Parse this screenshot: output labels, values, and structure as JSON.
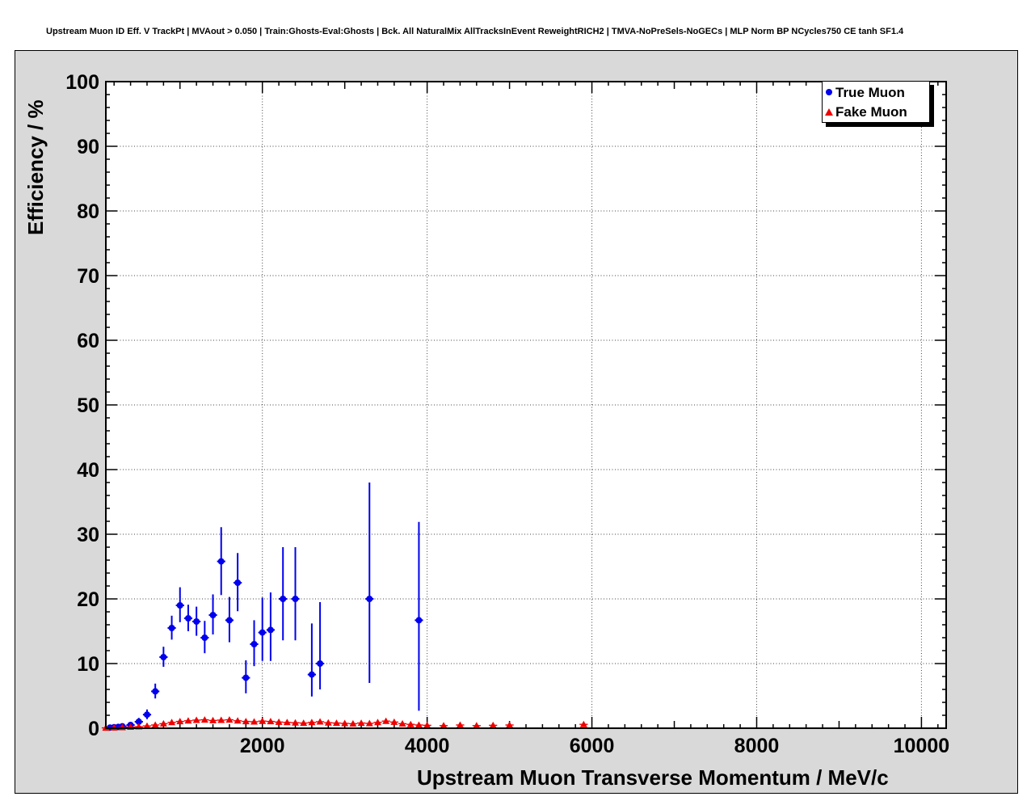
{
  "page": {
    "title": "Upstream Muon ID Eff. V TrackPt | MVAout > 0.050 | Train:Ghosts-Eval:Ghosts | Bck. All NaturalMix AllTracksInEvent ReweightRICH2 | TMVA-NoPreSels-NoGECs | MLP Norm BP NCycles750 CE tanh SF1.4"
  },
  "colors": {
    "pad_background": "#d9d9d9",
    "plot_background": "#ffffff",
    "true_muon": "#0000ee",
    "fake_muon": "#ee0000",
    "grid": "#444444",
    "frame": "#000000"
  },
  "legend": {
    "entries": [
      {
        "label": "True Muon",
        "marker": "circle",
        "color": "#0000ee"
      },
      {
        "label": "Fake Muon",
        "marker": "triangle",
        "color": "#ee0000"
      }
    ]
  },
  "chart_data": {
    "type": "scatter",
    "title": "Upstream Muon ID Eff. V TrackPt | MVAout > 0.050 | Train:Ghosts-Eval:Ghosts | Bck. All NaturalMix AllTracksInEvent ReweightRICH2 | TMVA-NoPreSels-NoGECs | MLP Norm BP NCycles750 CE tanh SF1.4",
    "xlabel": "Upstream Muon Transverse Momentum / MeV/c",
    "ylabel": "Efficiency / %",
    "xlim": [
      100,
      10300
    ],
    "ylim": [
      0,
      100
    ],
    "x_ticks": [
      2000,
      4000,
      6000,
      8000,
      10000
    ],
    "y_ticks": [
      0,
      10,
      20,
      30,
      40,
      50,
      60,
      70,
      80,
      90,
      100
    ],
    "x_minor_step": 200,
    "y_minor_step": 2,
    "grid": true,
    "legend_position": "top-right",
    "series": [
      {
        "name": "True Muon",
        "color": "#0000ee",
        "marker": "circle",
        "ex": 50,
        "x": [
          150,
          200,
          250,
          300,
          400,
          500,
          600,
          700,
          800,
          900,
          1000,
          1100,
          1200,
          1300,
          1400,
          1500,
          1600,
          1700,
          1800,
          1900,
          2000,
          2100,
          2250,
          2400,
          2600,
          2700,
          3300,
          3900
        ],
        "y": [
          0.1,
          0.15,
          0.2,
          0.3,
          0.5,
          1.0,
          2.1,
          5.7,
          11.0,
          15.5,
          19.0,
          17.0,
          16.5,
          14.0,
          17.5,
          25.8,
          16.7,
          22.5,
          7.8,
          13.0,
          14.8,
          15.2,
          20.0,
          20.0,
          8.3,
          10.0,
          20.0,
          16.7
        ],
        "ey_low": [
          0.08,
          0.1,
          0.12,
          0.2,
          0.3,
          0.4,
          0.7,
          1.1,
          1.5,
          1.8,
          2.6,
          2.0,
          2.2,
          2.4,
          3.0,
          5.2,
          3.4,
          4.4,
          2.4,
          3.4,
          4.4,
          4.8,
          6.4,
          6.4,
          3.4,
          4.0,
          13.0,
          14.0
        ],
        "ey_high": [
          0.12,
          0.15,
          0.18,
          0.3,
          0.4,
          0.6,
          0.8,
          1.2,
          1.6,
          1.9,
          2.8,
          2.1,
          2.3,
          2.6,
          3.2,
          5.3,
          3.6,
          4.6,
          2.7,
          3.7,
          5.4,
          5.8,
          8.0,
          8.0,
          7.9,
          9.5,
          18.0,
          15.2
        ]
      },
      {
        "name": "Fake Muon",
        "color": "#ee0000",
        "marker": "triangle",
        "ex": 50,
        "x": [
          100,
          200,
          300,
          400,
          500,
          600,
          700,
          800,
          900,
          1000,
          1100,
          1200,
          1300,
          1400,
          1500,
          1600,
          1700,
          1800,
          1900,
          2000,
          2100,
          2200,
          2300,
          2400,
          2500,
          2600,
          2700,
          2800,
          2900,
          3000,
          3100,
          3200,
          3300,
          3400,
          3500,
          3600,
          3700,
          3800,
          3900,
          4000,
          4200,
          4400,
          4600,
          4800,
          5000,
          5900
        ],
        "y": [
          0.05,
          0.08,
          0.12,
          0.18,
          0.25,
          0.35,
          0.5,
          0.7,
          0.9,
          1.05,
          1.15,
          1.25,
          1.3,
          1.2,
          1.25,
          1.3,
          1.15,
          1.05,
          1.0,
          1.1,
          1.05,
          0.95,
          0.9,
          0.85,
          0.8,
          0.9,
          1.0,
          0.85,
          0.8,
          0.75,
          0.7,
          0.8,
          0.75,
          0.9,
          1.1,
          0.95,
          0.7,
          0.6,
          0.5,
          0.45,
          0.4,
          0.5,
          0.4,
          0.45,
          0.5,
          0.6
        ],
        "ey": [
          0.03,
          0.04,
          0.05,
          0.06,
          0.07,
          0.08,
          0.09,
          0.1,
          0.11,
          0.12,
          0.12,
          0.13,
          0.13,
          0.12,
          0.13,
          0.13,
          0.12,
          0.12,
          0.12,
          0.13,
          0.13,
          0.12,
          0.12,
          0.12,
          0.12,
          0.13,
          0.14,
          0.13,
          0.13,
          0.13,
          0.13,
          0.14,
          0.14,
          0.15,
          0.17,
          0.16,
          0.14,
          0.13,
          0.13,
          0.12,
          0.13,
          0.15,
          0.14,
          0.16,
          0.18,
          0.25
        ]
      }
    ]
  }
}
